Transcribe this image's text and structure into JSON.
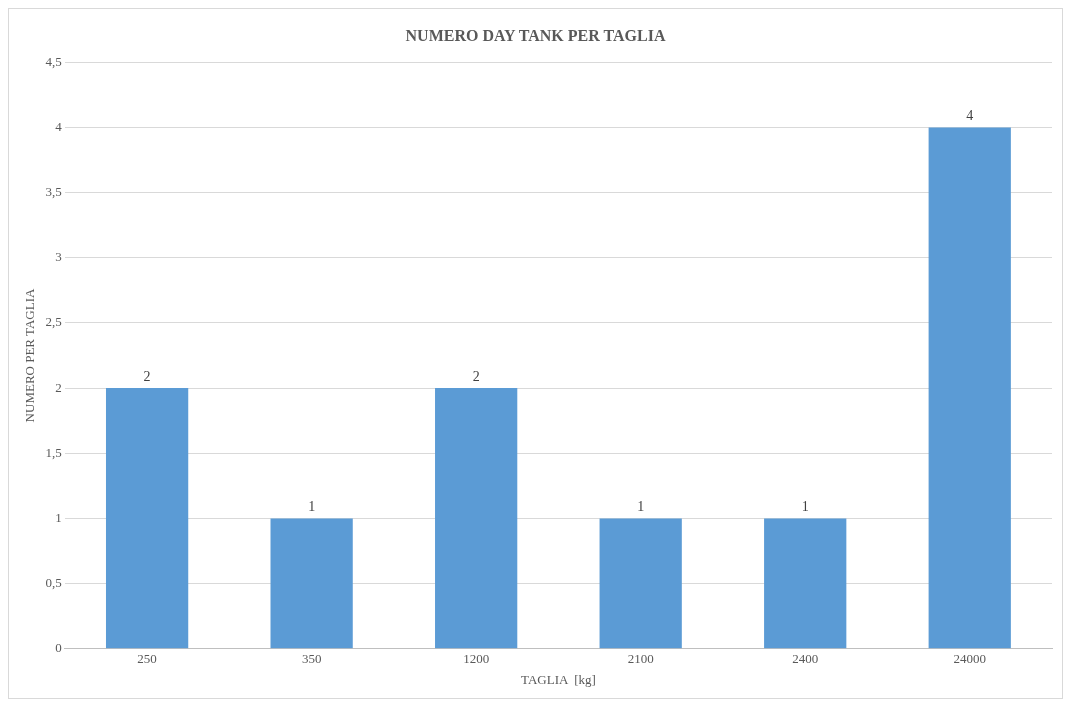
{
  "chart_data": {
    "type": "bar",
    "title": "NUMERO DAY TANK PER TAGLIA",
    "xlabel": "TAGLIA  [kg]",
    "ylabel": "NUMERO PER TAGLIA",
    "categories": [
      "250",
      "350",
      "1200",
      "2100",
      "2400",
      "24000"
    ],
    "values": [
      2,
      1,
      2,
      1,
      1,
      4
    ],
    "color": "#5b9bd5",
    "ylim": [
      0,
      4.5
    ],
    "yticks": [
      0,
      {
        "value": 0.5,
        "label": "0,5"
      },
      1,
      {
        "value": 1.5,
        "label": "1,5"
      },
      2,
      {
        "value": 2.5,
        "label": "2,5"
      },
      3,
      {
        "value": 3.5,
        "label": "3,5"
      },
      4,
      {
        "value": 4.5,
        "label": "4,5"
      }
    ],
    "grid": "y",
    "data_labels": true,
    "legend": false
  }
}
